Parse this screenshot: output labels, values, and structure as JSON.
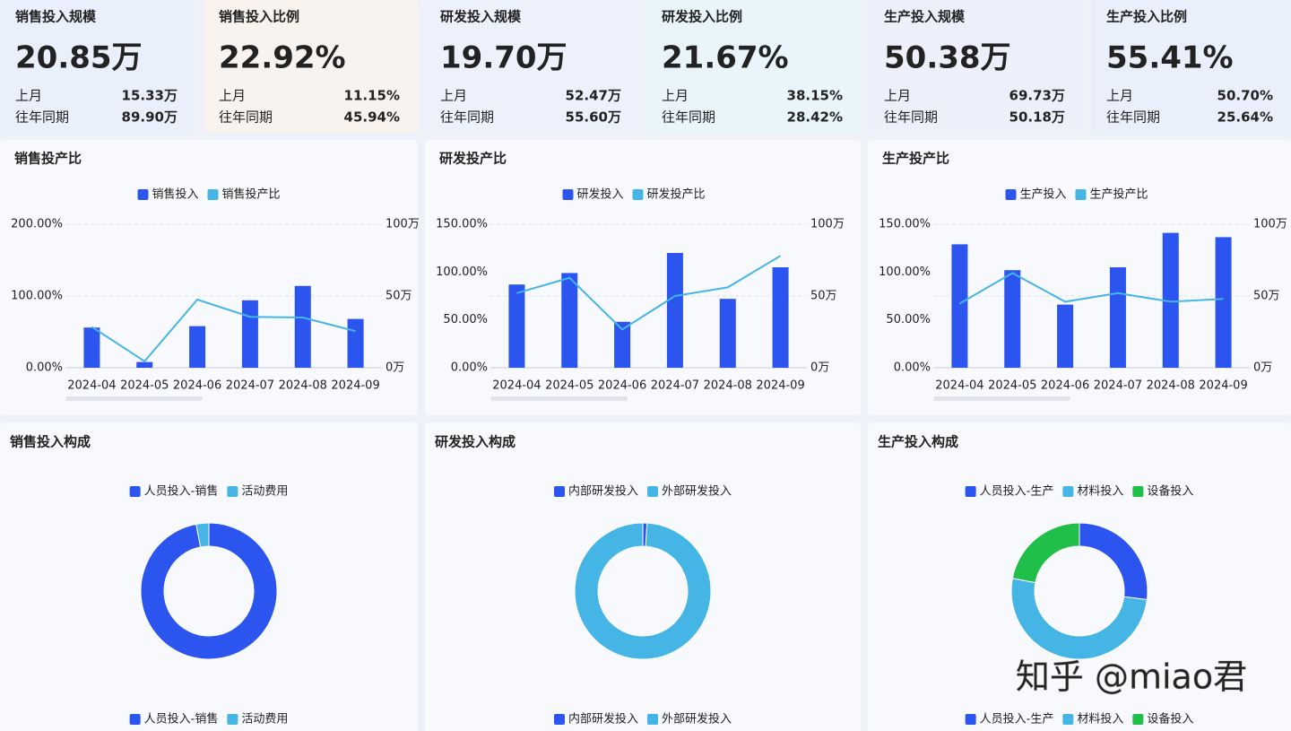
{
  "kpis": [
    {
      "title": "销售投入规模",
      "value": "20.85万",
      "rows": [
        {
          "label": "上月",
          "value": "15.33万"
        },
        {
          "label": "往年同期",
          "value": "89.90万"
        }
      ]
    },
    {
      "title": "销售投入比例",
      "value": "22.92%",
      "rows": [
        {
          "label": "上月",
          "value": "11.15%"
        },
        {
          "label": "往年同期",
          "value": "45.94%"
        }
      ]
    },
    {
      "title": "研发投入规模",
      "value": "19.70万",
      "rows": [
        {
          "label": "上月",
          "value": "52.47万"
        },
        {
          "label": "往年同期",
          "value": "55.60万"
        }
      ]
    },
    {
      "title": "研发投入比例",
      "value": "21.67%",
      "rows": [
        {
          "label": "上月",
          "value": "38.15%"
        },
        {
          "label": "往年同期",
          "value": "28.42%"
        }
      ]
    },
    {
      "title": "生产投入规模",
      "value": "50.38万",
      "rows": [
        {
          "label": "上月",
          "value": "69.73万"
        },
        {
          "label": "往年同期",
          "value": "50.18万"
        }
      ]
    },
    {
      "title": "生产投入比例",
      "value": "55.41%",
      "rows": [
        {
          "label": "上月",
          "value": "50.70%"
        },
        {
          "label": "往年同期",
          "value": "25.64%"
        }
      ]
    }
  ],
  "charts": [
    {
      "type": "bar-line",
      "title": "销售投产比",
      "categories": [
        "2024-04",
        "2024-05",
        "2024-06",
        "2024-07",
        "2024-08",
        "2024-09"
      ],
      "series": [
        {
          "name": "销售投入",
          "type": "bar",
          "axis": "y2",
          "color": "#2c55f0",
          "values": [
            28,
            4,
            29,
            47,
            57,
            34
          ]
        },
        {
          "name": "销售投产比",
          "type": "line",
          "color": "#45b5e5",
          "values": [
            57,
            9,
            95,
            71,
            70,
            51
          ]
        }
      ],
      "ylim": [
        0,
        200
      ],
      "yticks": [
        {
          "value": 0,
          "label": "0.00%"
        },
        {
          "value": 100,
          "label": "100.00%"
        },
        {
          "value": 200,
          "label": "200.00%"
        }
      ],
      "y2lim": [
        0,
        100
      ],
      "y2ticks": [
        {
          "value": 0,
          "label": "0万"
        },
        {
          "value": 50,
          "label": "50万"
        },
        {
          "value": 100,
          "label": "100万"
        }
      ],
      "grid": true
    },
    {
      "type": "bar-line",
      "title": "研发投产比",
      "categories": [
        "2024-04",
        "2024-05",
        "2024-06",
        "2024-07",
        "2024-08",
        "2024-09"
      ],
      "series": [
        {
          "name": "研发投入",
          "type": "bar",
          "axis": "y2",
          "color": "#2c55f0",
          "values": [
            58,
            66,
            32,
            80,
            48,
            70
          ]
        },
        {
          "name": "研发投产比",
          "type": "line",
          "color": "#45b5e5",
          "values": [
            78,
            94,
            40,
            75,
            84,
            117
          ]
        }
      ],
      "ylim": [
        0,
        150
      ],
      "yticks": [
        {
          "value": 0,
          "label": "0.00%"
        },
        {
          "value": 50,
          "label": "50.00%"
        },
        {
          "value": 100,
          "label": "100.00%"
        },
        {
          "value": 150,
          "label": "150.00%"
        }
      ],
      "y2lim": [
        0,
        100
      ],
      "y2ticks": [
        {
          "value": 0,
          "label": "0万"
        },
        {
          "value": 50,
          "label": "50万"
        },
        {
          "value": 100,
          "label": "100万"
        }
      ],
      "grid": true
    },
    {
      "type": "bar-line",
      "title": "生产投产比",
      "categories": [
        "2024-04",
        "2024-05",
        "2024-06",
        "2024-07",
        "2024-08",
        "2024-09"
      ],
      "series": [
        {
          "name": "生产投入",
          "type": "bar",
          "axis": "y2",
          "color": "#2c55f0",
          "values": [
            86,
            68,
            44,
            70,
            94,
            91
          ]
        },
        {
          "name": "生产投产比",
          "type": "line",
          "color": "#45b5e5",
          "values": [
            67,
            99,
            69,
            78,
            69,
            72
          ]
        }
      ],
      "ylim": [
        0,
        150
      ],
      "yticks": [
        {
          "value": 0,
          "label": "0.00%"
        },
        {
          "value": 50,
          "label": "50.00%"
        },
        {
          "value": 100,
          "label": "100.00%"
        },
        {
          "value": 150,
          "label": "150.00%"
        }
      ],
      "y2lim": [
        0,
        100
      ],
      "y2ticks": [
        {
          "value": 0,
          "label": "0万"
        },
        {
          "value": 50,
          "label": "50万"
        },
        {
          "value": 100,
          "label": "100万"
        }
      ],
      "grid": true
    }
  ],
  "donuts": [
    {
      "type": "donut",
      "title": "销售投入构成",
      "categories": [
        "人员投入-销售",
        "活动费用"
      ],
      "values": [
        97,
        3
      ],
      "colors": [
        "#2c55f0",
        "#45b5e5"
      ]
    },
    {
      "type": "donut",
      "title": "研发投入构成",
      "categories": [
        "内部研发投入",
        "外部研发投入"
      ],
      "values": [
        1,
        99
      ],
      "colors": [
        "#2c55f0",
        "#45b5e5"
      ]
    },
    {
      "type": "donut",
      "title": "生产投入构成",
      "categories": [
        "人员投入-生产",
        "材料投入",
        "设备投入"
      ],
      "values": [
        27,
        51,
        22
      ],
      "colors": [
        "#2c55f0",
        "#45b5e5",
        "#1fbf4a"
      ]
    }
  ],
  "watermark": "知乎 @miao君"
}
